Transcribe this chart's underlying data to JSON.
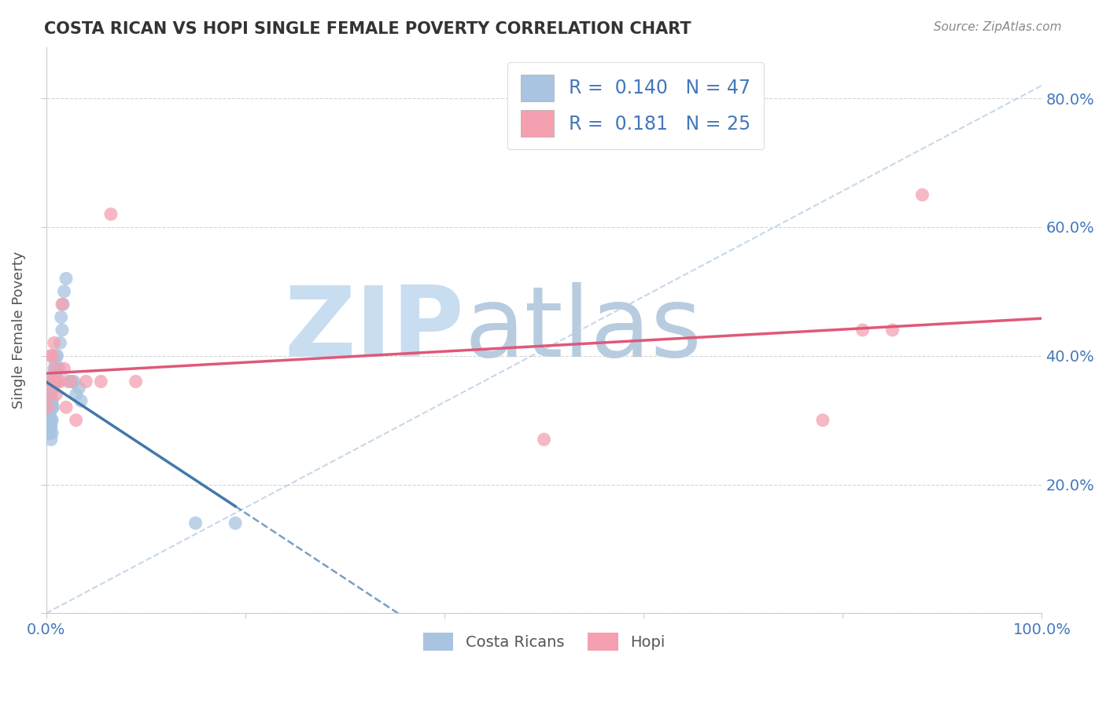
{
  "title": "COSTA RICAN VS HOPI SINGLE FEMALE POVERTY CORRELATION CHART",
  "source_text": "Source: ZipAtlas.com",
  "ylabel": "Single Female Poverty",
  "xlim": [
    0.0,
    1.0
  ],
  "ylim": [
    0.0,
    0.88
  ],
  "x_tick_positions": [
    0.0,
    0.2,
    0.4,
    0.6,
    0.8,
    1.0
  ],
  "x_tick_labels": [
    "0.0%",
    "",
    "",
    "",
    "",
    "100.0%"
  ],
  "y_tick_positions": [
    0.0,
    0.2,
    0.4,
    0.6,
    0.8
  ],
  "y_tick_labels": [
    "",
    "20.0%",
    "40.0%",
    "60.0%",
    "80.0%"
  ],
  "costa_rican_R": 0.14,
  "costa_rican_N": 47,
  "hopi_R": 0.181,
  "hopi_N": 25,
  "costa_rican_color": "#a8c4e0",
  "hopi_color": "#f4a0b0",
  "cr_line_color": "#4477aa",
  "hopi_line_color": "#e05878",
  "diag_line_color": "#b0c8e0",
  "grid_color": "#cccccc",
  "background_color": "#ffffff",
  "plot_bg_color": "#ffffff",
  "watermark_zip": "ZIP",
  "watermark_atlas": "atlas",
  "watermark_color_zip": "#c8ddf0",
  "watermark_color_atlas": "#b8cce0",
  "title_color": "#333333",
  "axis_label_color": "#555555",
  "tick_label_color": "#4477bb",
  "legend_color": "#4477bb",
  "costa_rican_x": [
    0.002,
    0.002,
    0.003,
    0.003,
    0.003,
    0.003,
    0.003,
    0.004,
    0.004,
    0.004,
    0.005,
    0.005,
    0.005,
    0.005,
    0.005,
    0.005,
    0.006,
    0.006,
    0.006,
    0.006,
    0.007,
    0.007,
    0.007,
    0.008,
    0.008,
    0.009,
    0.009,
    0.01,
    0.01,
    0.011,
    0.011,
    0.012,
    0.013,
    0.014,
    0.015,
    0.016,
    0.017,
    0.018,
    0.02,
    0.022,
    0.025,
    0.028,
    0.03,
    0.033,
    0.035,
    0.15,
    0.19
  ],
  "costa_rican_y": [
    0.28,
    0.3,
    0.28,
    0.29,
    0.3,
    0.31,
    0.32,
    0.28,
    0.29,
    0.31,
    0.27,
    0.29,
    0.3,
    0.32,
    0.33,
    0.34,
    0.28,
    0.3,
    0.32,
    0.33,
    0.32,
    0.35,
    0.37,
    0.36,
    0.38,
    0.36,
    0.39,
    0.37,
    0.4,
    0.36,
    0.4,
    0.38,
    0.38,
    0.42,
    0.46,
    0.44,
    0.48,
    0.5,
    0.52,
    0.36,
    0.36,
    0.36,
    0.34,
    0.35,
    0.33,
    0.14,
    0.14
  ],
  "hopi_x": [
    0.002,
    0.003,
    0.004,
    0.005,
    0.006,
    0.007,
    0.008,
    0.009,
    0.01,
    0.012,
    0.014,
    0.016,
    0.018,
    0.02,
    0.025,
    0.03,
    0.04,
    0.055,
    0.065,
    0.09,
    0.5,
    0.78,
    0.82,
    0.85,
    0.88
  ],
  "hopi_y": [
    0.32,
    0.34,
    0.36,
    0.4,
    0.4,
    0.36,
    0.42,
    0.38,
    0.34,
    0.36,
    0.36,
    0.48,
    0.38,
    0.32,
    0.36,
    0.3,
    0.36,
    0.36,
    0.62,
    0.36,
    0.27,
    0.3,
    0.44,
    0.44,
    0.65
  ]
}
